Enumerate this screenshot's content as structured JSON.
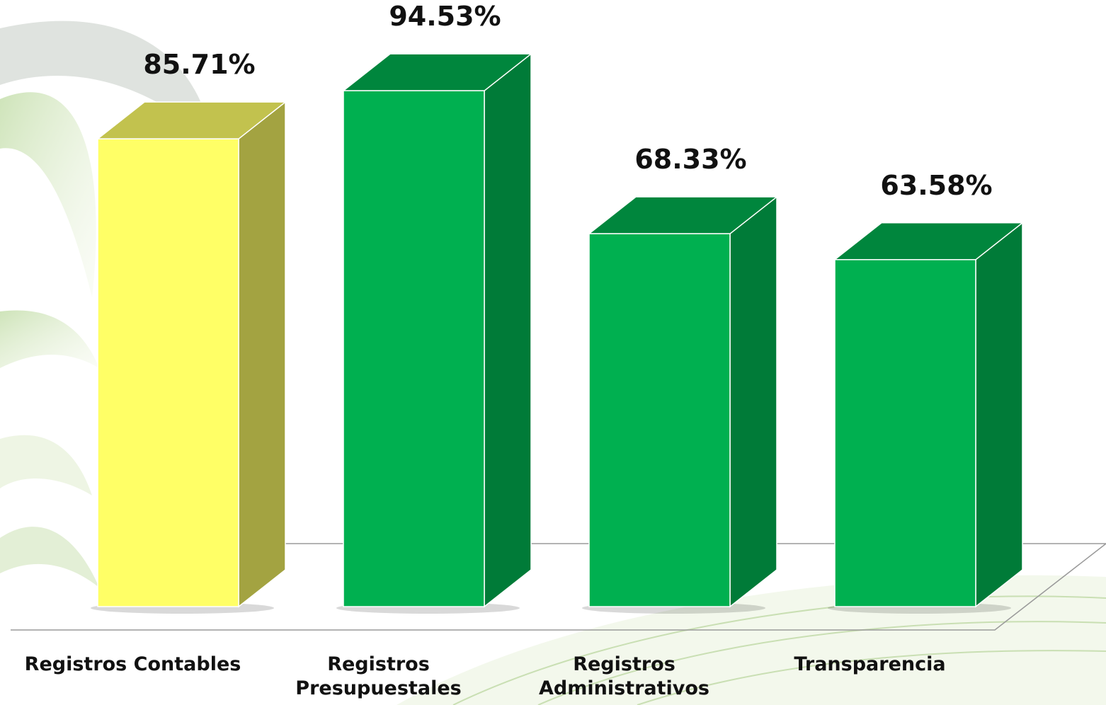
{
  "chart_data": {
    "type": "bar3d",
    "categories": [
      "Registros Contables",
      "Registros Presupuestales",
      "Registros Administrativos",
      "Transparencia"
    ],
    "values": [
      85.71,
      94.53,
      68.33,
      63.58
    ],
    "value_labels": [
      "85.71%",
      "94.53%",
      "68.33%",
      "63.58%"
    ],
    "colors": [
      "#ffff66",
      "#00b050",
      "#00b050",
      "#00b050"
    ]
  }
}
